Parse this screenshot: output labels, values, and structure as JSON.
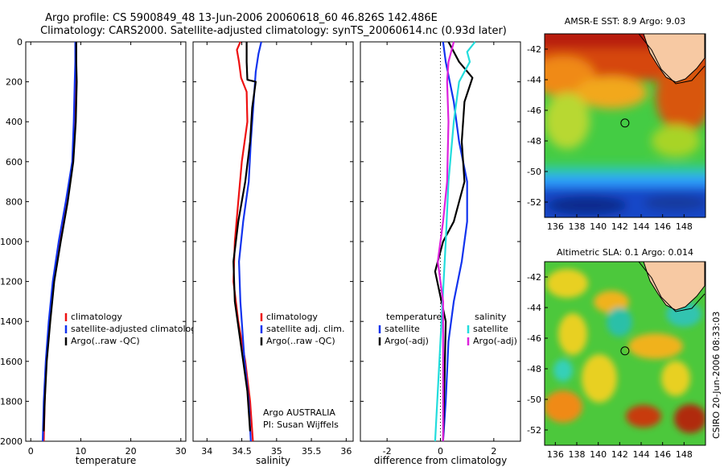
{
  "header": {
    "line1": "Argo profile: CS 5900849_48 13-Jun-2006 20060618_60 46.826S 142.486E",
    "line2": "Climatology: CARS2000. Satellite-adjusted climatology: synTS_20060614.nc (0.93d later)"
  },
  "colors": {
    "clim": "#ee1111",
    "sat": "#1133ee",
    "argo": "#000000",
    "sat_diff": "#22dddd",
    "argo_diff": "#dd22dd"
  },
  "chart_data": [
    {
      "type": "line",
      "id": "temperature",
      "xlabel": "temperature",
      "xlim": [
        -1,
        31
      ],
      "ylim": [
        2000,
        0
      ],
      "y_reversed": true,
      "xticks": [
        0,
        10,
        20,
        30
      ],
      "yticks": [
        0,
        200,
        400,
        600,
        800,
        1000,
        1200,
        1400,
        1600,
        1800,
        2000
      ],
      "legend": {
        "placement": "lower-center",
        "entries": [
          "climatology",
          "satellite-adjusted climatology",
          "Argo(..raw -QC)"
        ]
      },
      "series": [
        {
          "name": "climatology",
          "color": "clim",
          "points": [
            [
              8.9,
              0
            ],
            [
              8.9,
              100
            ],
            [
              8.9,
              200
            ],
            [
              8.7,
              400
            ],
            [
              8.4,
              600
            ],
            [
              7.2,
              800
            ],
            [
              5.8,
              1000
            ],
            [
              4.6,
              1200
            ],
            [
              3.7,
              1400
            ],
            [
              3.1,
              1600
            ],
            [
              2.8,
              1800
            ],
            [
              2.6,
              2000
            ]
          ]
        },
        {
          "name": "satellite-adjusted climatology",
          "color": "sat",
          "points": [
            [
              8.9,
              0
            ],
            [
              8.9,
              100
            ],
            [
              8.8,
              200
            ],
            [
              8.6,
              400
            ],
            [
              8.3,
              600
            ],
            [
              7.0,
              800
            ],
            [
              5.6,
              1000
            ],
            [
              4.4,
              1200
            ],
            [
              3.6,
              1400
            ],
            [
              3.0,
              1600
            ],
            [
              2.6,
              1800
            ],
            [
              2.4,
              2000
            ]
          ]
        },
        {
          "name": "Argo(..raw -QC)",
          "color": "argo",
          "points": [
            [
              9.1,
              0
            ],
            [
              9.1,
              100
            ],
            [
              9.2,
              200
            ],
            [
              9.0,
              400
            ],
            [
              8.5,
              600
            ],
            [
              7.4,
              800
            ],
            [
              6.0,
              1000
            ],
            [
              4.7,
              1200
            ],
            [
              3.9,
              1400
            ],
            [
              3.2,
              1600
            ],
            [
              2.8,
              1800
            ],
            [
              2.6,
              1950
            ]
          ]
        }
      ]
    },
    {
      "type": "line",
      "id": "salinity",
      "xlabel": "salinity",
      "xlim": [
        33.8,
        36.1
      ],
      "ylim": [
        2000,
        0
      ],
      "y_reversed": true,
      "xticks": [
        34,
        34.5,
        35,
        35.5,
        36
      ],
      "yticks": [
        0,
        200,
        400,
        600,
        800,
        1000,
        1200,
        1400,
        1600,
        1800,
        2000
      ],
      "legend": {
        "placement": "lower-right",
        "entries": [
          "climatology",
          "satellite adj. clim.",
          "Argo(..raw -QC)"
        ]
      },
      "annotation": [
        "Argo AUSTRALIA",
        "PI: Susan Wijffels"
      ],
      "series": [
        {
          "name": "climatology",
          "color": "clim",
          "points": [
            [
              34.48,
              0
            ],
            [
              34.43,
              40
            ],
            [
              34.46,
              100
            ],
            [
              34.49,
              180
            ],
            [
              34.57,
              250
            ],
            [
              34.58,
              400
            ],
            [
              34.5,
              600
            ],
            [
              34.45,
              800
            ],
            [
              34.4,
              1000
            ],
            [
              34.38,
              1200
            ],
            [
              34.45,
              1400
            ],
            [
              34.55,
              1600
            ],
            [
              34.62,
              1800
            ],
            [
              34.66,
              2000
            ]
          ]
        },
        {
          "name": "satellite adj. clim.",
          "color": "sat",
          "points": [
            [
              34.78,
              0
            ],
            [
              34.74,
              60
            ],
            [
              34.7,
              150
            ],
            [
              34.67,
              300
            ],
            [
              34.63,
              500
            ],
            [
              34.6,
              700
            ],
            [
              34.52,
              900
            ],
            [
              34.46,
              1100
            ],
            [
              34.48,
              1300
            ],
            [
              34.54,
              1600
            ],
            [
              34.6,
              1800
            ],
            [
              34.63,
              2000
            ]
          ]
        },
        {
          "name": "Argo(..raw -QC)",
          "color": "argo",
          "points": [
            [
              34.57,
              0
            ],
            [
              34.57,
              100
            ],
            [
              34.58,
              190
            ],
            [
              34.7,
              200
            ],
            [
              34.65,
              330
            ],
            [
              34.62,
              500
            ],
            [
              34.55,
              700
            ],
            [
              34.45,
              900
            ],
            [
              34.38,
              1100
            ],
            [
              34.4,
              1300
            ],
            [
              34.5,
              1550
            ],
            [
              34.58,
              1750
            ],
            [
              34.62,
              1950
            ]
          ]
        }
      ]
    },
    {
      "type": "line",
      "id": "difference",
      "xlabel": "difference from climatology",
      "xlim": [
        -3,
        3
      ],
      "ylim": [
        2000,
        0
      ],
      "y_reversed": true,
      "xticks": [
        -2,
        0,
        2
      ],
      "yticks": [
        0,
        200,
        400,
        600,
        800,
        1000,
        1200,
        1400,
        1600,
        1800,
        2000
      ],
      "legend": {
        "placement": "lower-center",
        "columns": [
          {
            "header": "temperature",
            "entries": [
              "satellite",
              "Argo(-adj)"
            ]
          },
          {
            "header": "salinity",
            "entries": [
              "satellite",
              "Argo(-adj)"
            ]
          }
        ]
      },
      "series": [
        {
          "name": "temperature satellite",
          "color": "sat",
          "points": [
            [
              0.1,
              0
            ],
            [
              0.2,
              100
            ],
            [
              0.5,
              300
            ],
            [
              0.7,
              500
            ],
            [
              1.0,
              700
            ],
            [
              1.0,
              900
            ],
            [
              0.8,
              1100
            ],
            [
              0.5,
              1300
            ],
            [
              0.3,
              1500
            ],
            [
              0.2,
              1800
            ],
            [
              0.1,
              2000
            ]
          ]
        },
        {
          "name": "temperature Argo(-adj)",
          "color": "argo",
          "points": [
            [
              0.3,
              0
            ],
            [
              0.7,
              100
            ],
            [
              1.2,
              180
            ],
            [
              0.9,
              300
            ],
            [
              0.8,
              500
            ],
            [
              0.9,
              700
            ],
            [
              0.5,
              900
            ],
            [
              0.1,
              1000
            ],
            [
              -0.2,
              1150
            ],
            [
              0.2,
              1400
            ],
            [
              0.15,
              1700
            ],
            [
              0.1,
              2000
            ]
          ]
        },
        {
          "name": "salinity satellite",
          "color": "sat_diff",
          "points": [
            [
              1.3,
              0
            ],
            [
              1.0,
              50
            ],
            [
              1.1,
              100
            ],
            [
              0.7,
              200
            ],
            [
              0.5,
              400
            ],
            [
              0.3,
              700
            ],
            [
              0.2,
              1000
            ],
            [
              0.0,
              1500
            ],
            [
              -0.2,
              2000
            ]
          ]
        },
        {
          "name": "salinity Argo(-adj)",
          "color": "argo_diff",
          "points": [
            [
              0.5,
              0
            ],
            [
              0.3,
              100
            ],
            [
              0.25,
              200
            ],
            [
              0.3,
              400
            ],
            [
              0.25,
              700
            ],
            [
              0.1,
              900
            ],
            [
              -0.1,
              1100
            ],
            [
              0.1,
              1300
            ],
            [
              0.1,
              1700
            ],
            [
              0.1,
              2000
            ]
          ]
        }
      ]
    }
  ],
  "maps": {
    "sst": {
      "title": "AMSR-E SST: 8.9 Argo: 9.03"
    },
    "sla": {
      "title": "Altimetric SLA: 0.1 Argo: 0.014"
    },
    "xlim": [
      135,
      150
    ],
    "ylim": [
      -53,
      -41
    ],
    "xticks": [
      136,
      138,
      140,
      142,
      144,
      146,
      148
    ],
    "yticks": [
      -42,
      -44,
      -46,
      -48,
      -50,
      -52
    ],
    "float_lon": 142.49,
    "float_lat": -46.83
  },
  "footer": {
    "credit": "CSIRO 20-Jun-2006 08:33:03"
  }
}
